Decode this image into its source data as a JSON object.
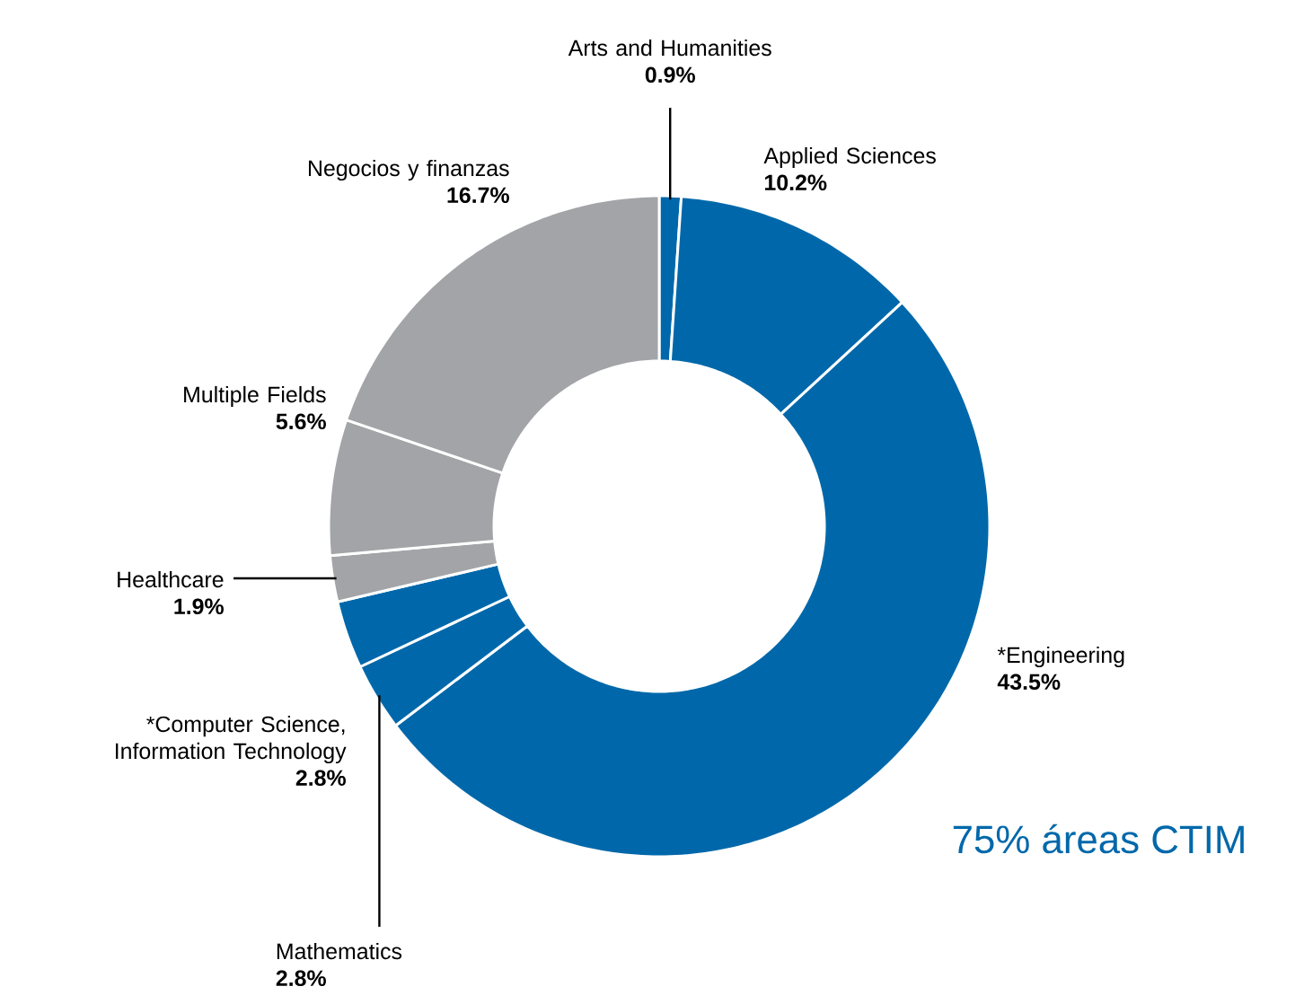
{
  "chart_data": {
    "type": "donut",
    "categories": [
      "Arts and Humanities",
      "Applied Sciences",
      "*Engineering",
      "Mathematics",
      "*Computer Science, Information Technology",
      "Healthcare",
      "Multiple Fields",
      "Negocios y finanzas"
    ],
    "values": [
      0.9,
      10.2,
      43.5,
      2.8,
      2.8,
      1.9,
      5.6,
      16.7
    ],
    "value_labels": [
      "0.9%",
      "10.2%",
      "43.5%",
      "2.8%",
      "2.8%",
      "1.9%",
      "5.6%",
      "16.7%"
    ],
    "colors": [
      "#0068aa",
      "#0068aa",
      "#0068aa",
      "#0068aa",
      "#0068aa",
      "#a3a4a7",
      "#a3a4a7",
      "#a3a4a7"
    ],
    "annotations": [
      "75% áreas CTIM"
    ]
  }
}
